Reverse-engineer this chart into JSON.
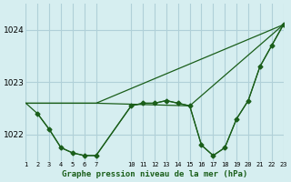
{
  "title": "Graphe pression niveau de la mer (hPa)",
  "background_color": "#d6eef0",
  "grid_color": "#b0d0d8",
  "line_color": "#1a5e1a",
  "marker_color": "#1a5e1a",
  "xlim": [
    1,
    23
  ],
  "ylim": [
    1021.5,
    1024.5
  ],
  "yticks": [
    1022,
    1023,
    1024
  ],
  "xtick_positions": [
    1,
    2,
    3,
    4,
    5,
    6,
    7,
    10,
    11,
    12,
    13,
    14,
    15,
    16,
    17,
    18,
    19,
    20,
    21,
    22,
    23
  ],
  "xtick_labels": [
    "1",
    "2",
    "3",
    "4",
    "5",
    "6",
    "7",
    "10",
    "11",
    "12",
    "13",
    "14",
    "15",
    "16",
    "17",
    "18",
    "19",
    "20",
    "21",
    "22",
    "23"
  ],
  "series": [
    {
      "x": [
        1,
        2,
        3,
        4,
        5,
        6,
        7,
        10,
        11,
        12,
        13,
        14,
        15,
        16,
        17,
        18,
        19,
        20,
        21,
        22,
        23
      ],
      "y": [
        1022.6,
        1022.4,
        1022.1,
        1021.75,
        1021.65,
        1021.6,
        1021.6,
        1022.55,
        1022.6,
        1022.6,
        1022.65,
        1022.6,
        1022.55,
        1021.8,
        1021.6,
        1021.75,
        1022.3,
        1022.65,
        1023.3,
        1023.7,
        1024.1
      ],
      "has_markers": false
    },
    {
      "x": [
        1,
        7,
        23
      ],
      "y": [
        1022.6,
        1022.6,
        1024.1
      ],
      "has_markers": false
    },
    {
      "x": [
        1,
        7,
        15,
        23
      ],
      "y": [
        1022.6,
        1022.6,
        1022.55,
        1024.1
      ],
      "has_markers": false
    },
    {
      "x": [
        2,
        3,
        4,
        5,
        6,
        7,
        10,
        11,
        12,
        13,
        14,
        15,
        16,
        17,
        18,
        19,
        20,
        21,
        22,
        23
      ],
      "y": [
        1022.4,
        1022.1,
        1021.75,
        1021.65,
        1021.6,
        1021.6,
        1022.55,
        1022.6,
        1022.6,
        1022.65,
        1022.6,
        1022.55,
        1021.8,
        1021.6,
        1021.75,
        1022.3,
        1022.65,
        1023.3,
        1023.7,
        1024.1
      ],
      "has_markers": true
    }
  ]
}
